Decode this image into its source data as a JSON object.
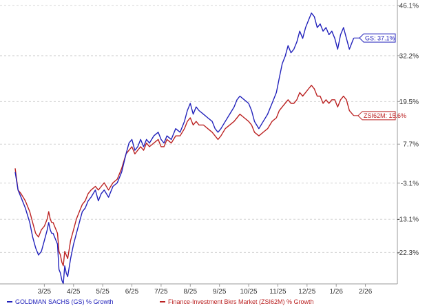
{
  "chart_data": {
    "type": "line",
    "title": "",
    "xlabel": "",
    "ylabel": "",
    "x_ticks": [
      "3/25",
      "4/25",
      "5/25",
      "6/25",
      "7/25",
      "8/25",
      "9/25",
      "10/25",
      "11/25",
      "12/25",
      "1/26",
      "2/26"
    ],
    "y_ticks": [
      "46.1%",
      "32.2%",
      "19.5%",
      "7.7%",
      "-3.1%",
      "-13.1%",
      "-22.3%"
    ],
    "y_tick_values": [
      46.1,
      32.2,
      19.5,
      7.7,
      -3.1,
      -13.1,
      -22.3
    ],
    "ylim": [
      -31,
      46.1
    ],
    "xlim": [
      0,
      12.6
    ],
    "grid": "horizontal-dashed",
    "legend_position": "bottom",
    "series": [
      {
        "name": "GOLDMAN SACHS (GS) % Growth",
        "color": "#2222bb",
        "callout": "GS: 37.1%",
        "last_value": 37.1,
        "points": [
          [
            0.0,
            0
          ],
          [
            0.1,
            -5
          ],
          [
            0.2,
            -7
          ],
          [
            0.35,
            -10
          ],
          [
            0.5,
            -14
          ],
          [
            0.6,
            -18
          ],
          [
            0.7,
            -21
          ],
          [
            0.8,
            -23
          ],
          [
            0.9,
            -22
          ],
          [
            1.0,
            -19
          ],
          [
            1.1,
            -16
          ],
          [
            1.15,
            -14
          ],
          [
            1.2,
            -16
          ],
          [
            1.25,
            -17
          ],
          [
            1.3,
            -17
          ],
          [
            1.35,
            -18
          ],
          [
            1.45,
            -20
          ],
          [
            1.5,
            -27
          ],
          [
            1.55,
            -28
          ],
          [
            1.6,
            -30
          ],
          [
            1.65,
            -31
          ],
          [
            1.7,
            -26
          ],
          [
            1.75,
            -28
          ],
          [
            1.8,
            -29
          ],
          [
            1.9,
            -24
          ],
          [
            2.0,
            -20
          ],
          [
            2.1,
            -17
          ],
          [
            2.2,
            -14
          ],
          [
            2.3,
            -11
          ],
          [
            2.4,
            -10
          ],
          [
            2.5,
            -8
          ],
          [
            2.6,
            -7
          ],
          [
            2.75,
            -5
          ],
          [
            2.85,
            -8
          ],
          [
            2.95,
            -6
          ],
          [
            3.05,
            -5
          ],
          [
            3.2,
            -7
          ],
          [
            3.35,
            -4
          ],
          [
            3.5,
            -3
          ],
          [
            3.65,
            0
          ],
          [
            3.8,
            5
          ],
          [
            3.9,
            8
          ],
          [
            4.0,
            9
          ],
          [
            4.1,
            6
          ],
          [
            4.2,
            7
          ],
          [
            4.3,
            9
          ],
          [
            4.4,
            7
          ],
          [
            4.5,
            9
          ],
          [
            4.6,
            8
          ],
          [
            4.75,
            10
          ],
          [
            4.9,
            11
          ],
          [
            5.0,
            9
          ],
          [
            5.1,
            8
          ],
          [
            5.2,
            10
          ],
          [
            5.35,
            9
          ],
          [
            5.5,
            12
          ],
          [
            5.65,
            11
          ],
          [
            5.8,
            14
          ],
          [
            5.9,
            17
          ],
          [
            6.0,
            19
          ],
          [
            6.1,
            16
          ],
          [
            6.2,
            18
          ],
          [
            6.3,
            17
          ],
          [
            6.45,
            16
          ],
          [
            6.6,
            15
          ],
          [
            6.75,
            14
          ],
          [
            6.85,
            12
          ],
          [
            6.95,
            11
          ],
          [
            7.05,
            12
          ],
          [
            7.2,
            14
          ],
          [
            7.35,
            16
          ],
          [
            7.5,
            18
          ],
          [
            7.6,
            20
          ],
          [
            7.7,
            21
          ],
          [
            7.85,
            20
          ],
          [
            8.0,
            19
          ],
          [
            8.1,
            17
          ],
          [
            8.2,
            14
          ],
          [
            8.35,
            12
          ],
          [
            8.5,
            14
          ],
          [
            8.65,
            16
          ],
          [
            8.8,
            19
          ],
          [
            8.95,
            22
          ],
          [
            9.05,
            26
          ],
          [
            9.15,
            30
          ],
          [
            9.25,
            32
          ],
          [
            9.35,
            35
          ],
          [
            9.45,
            33
          ],
          [
            9.55,
            34
          ],
          [
            9.65,
            36
          ],
          [
            9.75,
            39
          ],
          [
            9.85,
            37
          ],
          [
            9.95,
            40
          ],
          [
            10.05,
            42
          ],
          [
            10.15,
            44
          ],
          [
            10.25,
            43
          ],
          [
            10.35,
            40
          ],
          [
            10.45,
            41
          ],
          [
            10.55,
            39
          ],
          [
            10.65,
            40
          ],
          [
            10.75,
            38
          ],
          [
            10.85,
            39
          ],
          [
            10.95,
            37
          ],
          [
            11.05,
            34
          ],
          [
            11.15,
            38
          ],
          [
            11.25,
            40
          ],
          [
            11.35,
            37
          ],
          [
            11.45,
            34
          ],
          [
            11.6,
            37.1
          ]
        ]
      },
      {
        "name": "Finance-Investment Bkrs Market (ZSI62M) % Growth",
        "color": "#bb2222",
        "callout": "ZSI62M: 15.6%",
        "last_value": 15.6,
        "points": [
          [
            0.0,
            1
          ],
          [
            0.1,
            -5
          ],
          [
            0.2,
            -6
          ],
          [
            0.35,
            -8
          ],
          [
            0.5,
            -11
          ],
          [
            0.6,
            -14
          ],
          [
            0.7,
            -17
          ],
          [
            0.8,
            -18
          ],
          [
            0.9,
            -16
          ],
          [
            1.0,
            -15
          ],
          [
            1.1,
            -13
          ],
          [
            1.15,
            -11
          ],
          [
            1.2,
            -13
          ],
          [
            1.25,
            -14
          ],
          [
            1.3,
            -14
          ],
          [
            1.35,
            -15
          ],
          [
            1.45,
            -17
          ],
          [
            1.5,
            -22
          ],
          [
            1.55,
            -23
          ],
          [
            1.6,
            -25
          ],
          [
            1.65,
            -26
          ],
          [
            1.7,
            -22
          ],
          [
            1.75,
            -23
          ],
          [
            1.8,
            -24
          ],
          [
            1.9,
            -19
          ],
          [
            2.0,
            -16
          ],
          [
            2.1,
            -13
          ],
          [
            2.2,
            -11
          ],
          [
            2.3,
            -9
          ],
          [
            2.4,
            -8
          ],
          [
            2.5,
            -6
          ],
          [
            2.6,
            -5
          ],
          [
            2.75,
            -4
          ],
          [
            2.85,
            -5
          ],
          [
            2.95,
            -4
          ],
          [
            3.05,
            -3
          ],
          [
            3.2,
            -5
          ],
          [
            3.35,
            -3
          ],
          [
            3.5,
            -2
          ],
          [
            3.65,
            1
          ],
          [
            3.8,
            5
          ],
          [
            3.9,
            6
          ],
          [
            4.0,
            7
          ],
          [
            4.1,
            5
          ],
          [
            4.2,
            6
          ],
          [
            4.3,
            7
          ],
          [
            4.4,
            6
          ],
          [
            4.5,
            8
          ],
          [
            4.6,
            7
          ],
          [
            4.75,
            8
          ],
          [
            4.9,
            9
          ],
          [
            5.0,
            7
          ],
          [
            5.1,
            7
          ],
          [
            5.2,
            9
          ],
          [
            5.35,
            8
          ],
          [
            5.5,
            10
          ],
          [
            5.65,
            10
          ],
          [
            5.8,
            12
          ],
          [
            5.9,
            14
          ],
          [
            6.0,
            15
          ],
          [
            6.1,
            13
          ],
          [
            6.2,
            14
          ],
          [
            6.3,
            13
          ],
          [
            6.45,
            13
          ],
          [
            6.6,
            12
          ],
          [
            6.75,
            11
          ],
          [
            6.85,
            10
          ],
          [
            6.95,
            9
          ],
          [
            7.05,
            10
          ],
          [
            7.2,
            12
          ],
          [
            7.35,
            13
          ],
          [
            7.5,
            14
          ],
          [
            7.6,
            15
          ],
          [
            7.7,
            16
          ],
          [
            7.85,
            15
          ],
          [
            8.0,
            14
          ],
          [
            8.1,
            13
          ],
          [
            8.2,
            11
          ],
          [
            8.35,
            10
          ],
          [
            8.5,
            11
          ],
          [
            8.65,
            12
          ],
          [
            8.8,
            14
          ],
          [
            8.95,
            15
          ],
          [
            9.05,
            17
          ],
          [
            9.15,
            18
          ],
          [
            9.25,
            19
          ],
          [
            9.35,
            20
          ],
          [
            9.45,
            19
          ],
          [
            9.55,
            19
          ],
          [
            9.65,
            20
          ],
          [
            9.75,
            22
          ],
          [
            9.85,
            21
          ],
          [
            9.95,
            22
          ],
          [
            10.05,
            23
          ],
          [
            10.15,
            24
          ],
          [
            10.25,
            23
          ],
          [
            10.35,
            21
          ],
          [
            10.45,
            21
          ],
          [
            10.55,
            19
          ],
          [
            10.65,
            20
          ],
          [
            10.75,
            19
          ],
          [
            10.85,
            20
          ],
          [
            10.95,
            20
          ],
          [
            11.05,
            18
          ],
          [
            11.15,
            20
          ],
          [
            11.25,
            21
          ],
          [
            11.35,
            20
          ],
          [
            11.45,
            17
          ],
          [
            11.6,
            15.6
          ]
        ]
      }
    ]
  }
}
